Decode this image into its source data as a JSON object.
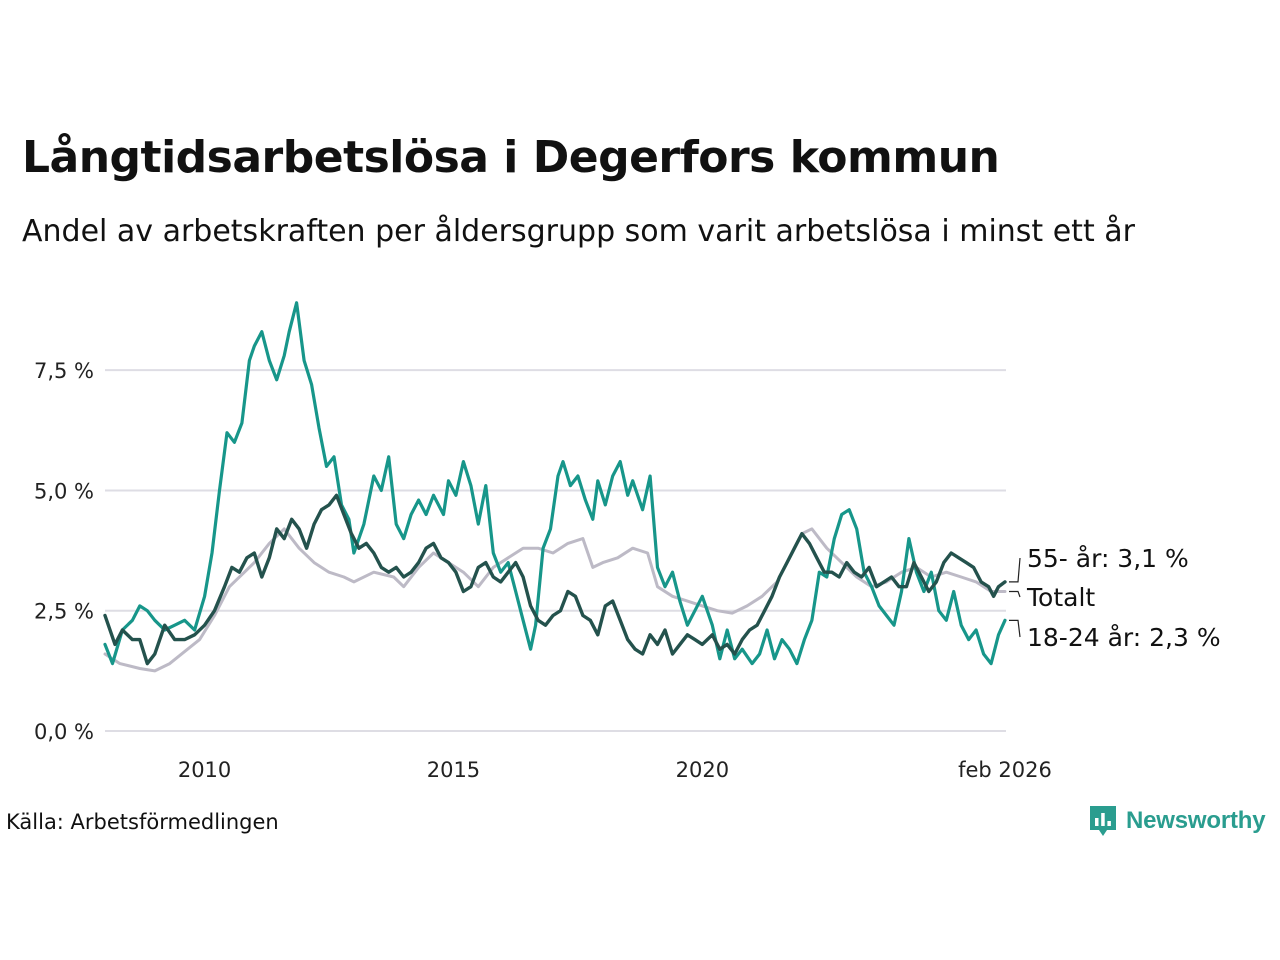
{
  "title": "Långtidsarbetslösa i Degerfors kommun",
  "subtitle": "Andel av arbetskraften per åldersgrupp som varit arbetslösa i minst ett år",
  "source": "Källa: Arbetsförmedlingen",
  "brand": {
    "name": "Newsworthy",
    "icon": "newsworthy-logo-icon"
  },
  "colors": {
    "young": "#17968a",
    "old": "#24524d",
    "total": "#bdbac6",
    "grid": "#dedde4",
    "brand": "#2a9d8f"
  },
  "chart_data": {
    "type": "line",
    "title": "Långtidsarbetslösa i Degerfors kommun",
    "xlabel": "",
    "ylabel": "",
    "x_range": [
      2008.0,
      2026.1
    ],
    "ylim": [
      0,
      9
    ],
    "y_ticks": [
      0,
      2.5,
      5.0,
      7.5
    ],
    "y_tick_labels": [
      "0,0 %",
      "2,5 %",
      "5,0 %",
      "7,5 %"
    ],
    "x_ticks": [
      2010,
      2015,
      2020,
      2026.08
    ],
    "x_tick_labels": [
      "2010",
      "2015",
      "2020",
      "feb 2026"
    ],
    "grid": true,
    "series": [
      {
        "key": "total",
        "name": "Totalt",
        "label": "Totalt",
        "points": [
          [
            2008.0,
            1.6
          ],
          [
            2008.3,
            1.4
          ],
          [
            2008.7,
            1.3
          ],
          [
            2009.0,
            1.25
          ],
          [
            2009.3,
            1.4
          ],
          [
            2009.6,
            1.65
          ],
          [
            2009.9,
            1.9
          ],
          [
            2010.2,
            2.4
          ],
          [
            2010.5,
            3.0
          ],
          [
            2010.8,
            3.3
          ],
          [
            2011.0,
            3.5
          ],
          [
            2011.3,
            3.9
          ],
          [
            2011.6,
            4.2
          ],
          [
            2011.9,
            3.8
          ],
          [
            2012.2,
            3.5
          ],
          [
            2012.5,
            3.3
          ],
          [
            2012.8,
            3.2
          ],
          [
            2013.0,
            3.1
          ],
          [
            2013.4,
            3.3
          ],
          [
            2013.8,
            3.2
          ],
          [
            2014.0,
            3.0
          ],
          [
            2014.3,
            3.4
          ],
          [
            2014.6,
            3.7
          ],
          [
            2014.9,
            3.5
          ],
          [
            2015.2,
            3.3
          ],
          [
            2015.5,
            3.0
          ],
          [
            2015.8,
            3.4
          ],
          [
            2016.1,
            3.6
          ],
          [
            2016.4,
            3.8
          ],
          [
            2016.7,
            3.8
          ],
          [
            2017.0,
            3.7
          ],
          [
            2017.3,
            3.9
          ],
          [
            2017.6,
            4.0
          ],
          [
            2017.8,
            3.4
          ],
          [
            2018.0,
            3.5
          ],
          [
            2018.3,
            3.6
          ],
          [
            2018.6,
            3.8
          ],
          [
            2018.9,
            3.7
          ],
          [
            2019.1,
            3.0
          ],
          [
            2019.4,
            2.8
          ],
          [
            2019.7,
            2.7
          ],
          [
            2020.0,
            2.6
          ],
          [
            2020.3,
            2.5
          ],
          [
            2020.6,
            2.45
          ],
          [
            2020.9,
            2.6
          ],
          [
            2021.2,
            2.8
          ],
          [
            2021.5,
            3.1
          ],
          [
            2021.8,
            3.7
          ],
          [
            2022.0,
            4.1
          ],
          [
            2022.2,
            4.2
          ],
          [
            2022.5,
            3.8
          ],
          [
            2022.8,
            3.5
          ],
          [
            2023.1,
            3.2
          ],
          [
            2023.4,
            3.0
          ],
          [
            2023.7,
            3.1
          ],
          [
            2024.0,
            3.3
          ],
          [
            2024.3,
            3.4
          ],
          [
            2024.6,
            3.2
          ],
          [
            2024.9,
            3.3
          ],
          [
            2025.2,
            3.2
          ],
          [
            2025.5,
            3.1
          ],
          [
            2025.8,
            2.9
          ],
          [
            2026.08,
            2.9
          ]
        ]
      },
      {
        "key": "young",
        "name": "18-24 år",
        "label": "18-24 år: 2,3 %",
        "points": [
          [
            2008.0,
            1.8
          ],
          [
            2008.15,
            1.4
          ],
          [
            2008.35,
            2.1
          ],
          [
            2008.55,
            2.3
          ],
          [
            2008.7,
            2.6
          ],
          [
            2008.85,
            2.5
          ],
          [
            2009.0,
            2.3
          ],
          [
            2009.2,
            2.1
          ],
          [
            2009.4,
            2.2
          ],
          [
            2009.6,
            2.3
          ],
          [
            2009.8,
            2.1
          ],
          [
            2010.0,
            2.8
          ],
          [
            2010.15,
            3.7
          ],
          [
            2010.3,
            5.0
          ],
          [
            2010.45,
            6.2
          ],
          [
            2010.6,
            6.0
          ],
          [
            2010.75,
            6.4
          ],
          [
            2010.9,
            7.7
          ],
          [
            2011.0,
            8.0
          ],
          [
            2011.15,
            8.3
          ],
          [
            2011.3,
            7.7
          ],
          [
            2011.45,
            7.3
          ],
          [
            2011.6,
            7.8
          ],
          [
            2011.7,
            8.3
          ],
          [
            2011.85,
            8.9
          ],
          [
            2012.0,
            7.7
          ],
          [
            2012.15,
            7.2
          ],
          [
            2012.3,
            6.3
          ],
          [
            2012.45,
            5.5
          ],
          [
            2012.6,
            5.7
          ],
          [
            2012.75,
            4.7
          ],
          [
            2012.9,
            4.4
          ],
          [
            2013.0,
            3.7
          ],
          [
            2013.2,
            4.3
          ],
          [
            2013.4,
            5.3
          ],
          [
            2013.55,
            5.0
          ],
          [
            2013.7,
            5.7
          ],
          [
            2013.85,
            4.3
          ],
          [
            2014.0,
            4.0
          ],
          [
            2014.15,
            4.5
          ],
          [
            2014.3,
            4.8
          ],
          [
            2014.45,
            4.5
          ],
          [
            2014.6,
            4.9
          ],
          [
            2014.8,
            4.5
          ],
          [
            2014.9,
            5.2
          ],
          [
            2015.05,
            4.9
          ],
          [
            2015.2,
            5.6
          ],
          [
            2015.35,
            5.1
          ],
          [
            2015.5,
            4.3
          ],
          [
            2015.65,
            5.1
          ],
          [
            2015.8,
            3.7
          ],
          [
            2015.95,
            3.3
          ],
          [
            2016.1,
            3.5
          ],
          [
            2016.25,
            2.9
          ],
          [
            2016.4,
            2.3
          ],
          [
            2016.55,
            1.7
          ],
          [
            2016.65,
            2.2
          ],
          [
            2016.8,
            3.8
          ],
          [
            2016.95,
            4.2
          ],
          [
            2017.1,
            5.3
          ],
          [
            2017.2,
            5.6
          ],
          [
            2017.35,
            5.1
          ],
          [
            2017.5,
            5.3
          ],
          [
            2017.65,
            4.8
          ],
          [
            2017.8,
            4.4
          ],
          [
            2017.9,
            5.2
          ],
          [
            2018.05,
            4.7
          ],
          [
            2018.2,
            5.3
          ],
          [
            2018.35,
            5.6
          ],
          [
            2018.5,
            4.9
          ],
          [
            2018.6,
            5.2
          ],
          [
            2018.8,
            4.6
          ],
          [
            2018.95,
            5.3
          ],
          [
            2019.1,
            3.4
          ],
          [
            2019.25,
            3.0
          ],
          [
            2019.4,
            3.3
          ],
          [
            2019.55,
            2.7
          ],
          [
            2019.7,
            2.2
          ],
          [
            2019.85,
            2.5
          ],
          [
            2020.0,
            2.8
          ],
          [
            2020.2,
            2.2
          ],
          [
            2020.35,
            1.5
          ],
          [
            2020.5,
            2.1
          ],
          [
            2020.65,
            1.5
          ],
          [
            2020.8,
            1.7
          ],
          [
            2021.0,
            1.4
          ],
          [
            2021.15,
            1.6
          ],
          [
            2021.3,
            2.1
          ],
          [
            2021.45,
            1.5
          ],
          [
            2021.6,
            1.9
          ],
          [
            2021.75,
            1.7
          ],
          [
            2021.9,
            1.4
          ],
          [
            2022.05,
            1.9
          ],
          [
            2022.2,
            2.3
          ],
          [
            2022.35,
            3.3
          ],
          [
            2022.5,
            3.2
          ],
          [
            2022.65,
            4.0
          ],
          [
            2022.8,
            4.5
          ],
          [
            2022.95,
            4.6
          ],
          [
            2023.1,
            4.2
          ],
          [
            2023.25,
            3.3
          ],
          [
            2023.4,
            3.0
          ],
          [
            2023.55,
            2.6
          ],
          [
            2023.7,
            2.4
          ],
          [
            2023.85,
            2.2
          ],
          [
            2024.0,
            2.9
          ],
          [
            2024.15,
            4.0
          ],
          [
            2024.3,
            3.3
          ],
          [
            2024.45,
            2.9
          ],
          [
            2024.6,
            3.3
          ],
          [
            2024.75,
            2.5
          ],
          [
            2024.9,
            2.3
          ],
          [
            2025.05,
            2.9
          ],
          [
            2025.2,
            2.2
          ],
          [
            2025.35,
            1.9
          ],
          [
            2025.5,
            2.1
          ],
          [
            2025.65,
            1.6
          ],
          [
            2025.8,
            1.4
          ],
          [
            2025.95,
            2.0
          ],
          [
            2026.08,
            2.3
          ]
        ]
      },
      {
        "key": "old",
        "name": "55- år",
        "label": "55- år: 3,1 %",
        "points": [
          [
            2008.0,
            2.4
          ],
          [
            2008.2,
            1.8
          ],
          [
            2008.35,
            2.1
          ],
          [
            2008.55,
            1.9
          ],
          [
            2008.7,
            1.9
          ],
          [
            2008.85,
            1.4
          ],
          [
            2009.0,
            1.6
          ],
          [
            2009.2,
            2.2
          ],
          [
            2009.4,
            1.9
          ],
          [
            2009.6,
            1.9
          ],
          [
            2009.8,
            2.0
          ],
          [
            2010.0,
            2.2
          ],
          [
            2010.2,
            2.5
          ],
          [
            2010.4,
            3.0
          ],
          [
            2010.55,
            3.4
          ],
          [
            2010.7,
            3.3
          ],
          [
            2010.85,
            3.6
          ],
          [
            2011.0,
            3.7
          ],
          [
            2011.15,
            3.2
          ],
          [
            2011.3,
            3.6
          ],
          [
            2011.45,
            4.2
          ],
          [
            2011.6,
            4.0
          ],
          [
            2011.75,
            4.4
          ],
          [
            2011.9,
            4.2
          ],
          [
            2012.05,
            3.8
          ],
          [
            2012.2,
            4.3
          ],
          [
            2012.35,
            4.6
          ],
          [
            2012.5,
            4.7
          ],
          [
            2012.65,
            4.9
          ],
          [
            2012.8,
            4.5
          ],
          [
            2012.95,
            4.1
          ],
          [
            2013.1,
            3.8
          ],
          [
            2013.25,
            3.9
          ],
          [
            2013.4,
            3.7
          ],
          [
            2013.55,
            3.4
          ],
          [
            2013.7,
            3.3
          ],
          [
            2013.85,
            3.4
          ],
          [
            2014.0,
            3.2
          ],
          [
            2014.15,
            3.3
          ],
          [
            2014.3,
            3.5
          ],
          [
            2014.45,
            3.8
          ],
          [
            2014.6,
            3.9
          ],
          [
            2014.75,
            3.6
          ],
          [
            2014.9,
            3.5
          ],
          [
            2015.05,
            3.3
          ],
          [
            2015.2,
            2.9
          ],
          [
            2015.35,
            3.0
          ],
          [
            2015.5,
            3.4
          ],
          [
            2015.65,
            3.5
          ],
          [
            2015.8,
            3.2
          ],
          [
            2015.95,
            3.1
          ],
          [
            2016.1,
            3.3
          ],
          [
            2016.25,
            3.5
          ],
          [
            2016.4,
            3.2
          ],
          [
            2016.55,
            2.6
          ],
          [
            2016.7,
            2.3
          ],
          [
            2016.85,
            2.2
          ],
          [
            2017.0,
            2.4
          ],
          [
            2017.15,
            2.5
          ],
          [
            2017.3,
            2.9
          ],
          [
            2017.45,
            2.8
          ],
          [
            2017.6,
            2.4
          ],
          [
            2017.75,
            2.3
          ],
          [
            2017.9,
            2.0
          ],
          [
            2018.05,
            2.6
          ],
          [
            2018.2,
            2.7
          ],
          [
            2018.35,
            2.3
          ],
          [
            2018.5,
            1.9
          ],
          [
            2018.65,
            1.7
          ],
          [
            2018.8,
            1.6
          ],
          [
            2018.95,
            2.0
          ],
          [
            2019.1,
            1.8
          ],
          [
            2019.25,
            2.1
          ],
          [
            2019.4,
            1.6
          ],
          [
            2019.55,
            1.8
          ],
          [
            2019.7,
            2.0
          ],
          [
            2019.85,
            1.9
          ],
          [
            2020.0,
            1.8
          ],
          [
            2020.2,
            2.0
          ],
          [
            2020.35,
            1.7
          ],
          [
            2020.5,
            1.8
          ],
          [
            2020.65,
            1.6
          ],
          [
            2020.8,
            1.9
          ],
          [
            2020.95,
            2.1
          ],
          [
            2021.1,
            2.2
          ],
          [
            2021.25,
            2.5
          ],
          [
            2021.4,
            2.8
          ],
          [
            2021.55,
            3.2
          ],
          [
            2021.7,
            3.5
          ],
          [
            2021.85,
            3.8
          ],
          [
            2022.0,
            4.1
          ],
          [
            2022.15,
            3.9
          ],
          [
            2022.3,
            3.6
          ],
          [
            2022.45,
            3.3
          ],
          [
            2022.6,
            3.3
          ],
          [
            2022.75,
            3.2
          ],
          [
            2022.9,
            3.5
          ],
          [
            2023.05,
            3.3
          ],
          [
            2023.2,
            3.2
          ],
          [
            2023.35,
            3.4
          ],
          [
            2023.5,
            3.0
          ],
          [
            2023.65,
            3.1
          ],
          [
            2023.8,
            3.2
          ],
          [
            2023.95,
            3.0
          ],
          [
            2024.1,
            3.0
          ],
          [
            2024.25,
            3.5
          ],
          [
            2024.4,
            3.2
          ],
          [
            2024.55,
            2.9
          ],
          [
            2024.7,
            3.1
          ],
          [
            2024.85,
            3.5
          ],
          [
            2025.0,
            3.7
          ],
          [
            2025.15,
            3.6
          ],
          [
            2025.3,
            3.5
          ],
          [
            2025.45,
            3.4
          ],
          [
            2025.6,
            3.1
          ],
          [
            2025.75,
            3.0
          ],
          [
            2025.85,
            2.8
          ],
          [
            2025.95,
            3.0
          ],
          [
            2026.08,
            3.1
          ]
        ]
      }
    ]
  }
}
